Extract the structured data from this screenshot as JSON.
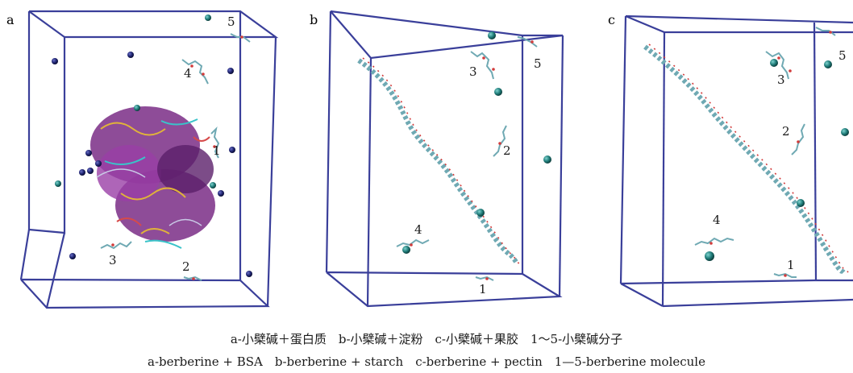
{
  "panels": [
    {
      "letter": "a",
      "numbers": [
        "1",
        "2",
        "3",
        "4",
        "5"
      ]
    },
    {
      "letter": "b",
      "numbers": [
        "1",
        "2",
        "3",
        "4",
        "5"
      ]
    },
    {
      "letter": "c",
      "numbers": [
        "1",
        "2",
        "3",
        "4",
        "5"
      ]
    }
  ],
  "caption": {
    "line1": "a-小檗碱＋蛋白质　b-小檗碱＋淀粉　c-小檗碱＋果胶　1～5-小檗碱分子",
    "line2": "a-berberine + BSA　b-berberine + starch　c-berberine + pectin　1—5-berberine molecule"
  },
  "colors": {
    "box": "#3a3f9a",
    "ion_dark": "#1f2470",
    "ion_teal": "#1f7b78",
    "polymer": "#6fa9b3",
    "oxygen": "#d23b3b",
    "protein": "#7a2d86"
  }
}
